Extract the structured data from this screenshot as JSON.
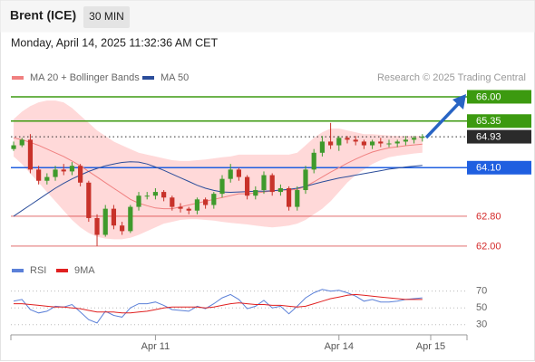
{
  "header": {
    "instrument": "Brent (ICE)",
    "interval": "30 MIN",
    "timestamp": "Monday, April 14, 2025 11:32:36 AM CET"
  },
  "chart_data": [
    {
      "type": "candlestick",
      "credit": "Research © 2025 Trading Central",
      "x": [
        0,
        1,
        2,
        3,
        4,
        5,
        6,
        7,
        8,
        9,
        10,
        11,
        12,
        13,
        14,
        15,
        16,
        17,
        18,
        19,
        20,
        21,
        22,
        23,
        24,
        25,
        26,
        27,
        28,
        29,
        30,
        31,
        32,
        33,
        34,
        35,
        36,
        37,
        38,
        39,
        40,
        41,
        42,
        43,
        44,
        45,
        46,
        47,
        48,
        49
      ],
      "xlim": [
        -0.33,
        54.35
      ],
      "ylim": [
        61.73,
        66.29
      ],
      "up_color": "#3f9a2c",
      "down_color": "#c8322a",
      "open": [
        64.6,
        64.7,
        64.85,
        64.05,
        63.75,
        63.85,
        64.05,
        64.0,
        64.15,
        63.7,
        62.75,
        62.3,
        63.0,
        62.55,
        62.4,
        63.05,
        63.35,
        63.35,
        63.45,
        63.3,
        63.05,
        63.0,
        62.95,
        63.25,
        63.1,
        63.4,
        63.8,
        64.05,
        63.85,
        63.35,
        63.5,
        63.9,
        63.45,
        63.55,
        63.05,
        63.5,
        64.05,
        64.5,
        64.8,
        64.7,
        64.9,
        64.85,
        64.8,
        64.7,
        64.8,
        64.75,
        64.75,
        64.8,
        64.85,
        64.9
      ],
      "high": [
        64.8,
        64.9,
        65.0,
        64.15,
        63.95,
        64.15,
        64.2,
        64.25,
        64.2,
        63.75,
        62.85,
        63.1,
        63.1,
        62.65,
        63.1,
        63.45,
        63.45,
        63.55,
        63.5,
        63.35,
        63.15,
        63.05,
        63.3,
        63.3,
        63.45,
        63.9,
        64.2,
        64.1,
        63.9,
        63.6,
        64.0,
        63.95,
        63.65,
        63.6,
        63.6,
        64.15,
        64.6,
        64.95,
        65.3,
        64.95,
        64.95,
        64.95,
        64.85,
        64.85,
        64.9,
        64.85,
        64.85,
        64.95,
        64.95,
        65.0
      ],
      "low": [
        64.55,
        64.65,
        63.95,
        63.65,
        63.65,
        63.75,
        63.9,
        63.9,
        63.6,
        62.65,
        62.0,
        62.25,
        62.45,
        62.3,
        62.35,
        62.95,
        63.25,
        63.25,
        63.2,
        62.95,
        62.9,
        62.85,
        62.85,
        63.0,
        63.0,
        63.3,
        63.7,
        63.75,
        63.25,
        63.25,
        63.4,
        63.35,
        63.35,
        62.95,
        62.95,
        63.4,
        63.95,
        64.4,
        64.6,
        64.55,
        64.75,
        64.7,
        64.6,
        64.6,
        64.65,
        64.65,
        64.65,
        64.7,
        64.75,
        64.8
      ],
      "close": [
        64.7,
        64.85,
        64.05,
        63.75,
        63.85,
        64.05,
        64.0,
        64.15,
        63.7,
        62.75,
        62.3,
        63.0,
        62.55,
        62.4,
        63.05,
        63.35,
        63.35,
        63.45,
        63.3,
        63.05,
        63.0,
        62.95,
        63.25,
        63.1,
        63.4,
        63.8,
        64.05,
        63.85,
        63.35,
        63.5,
        63.9,
        63.45,
        63.55,
        63.05,
        63.5,
        64.05,
        64.5,
        64.8,
        64.7,
        64.9,
        64.85,
        64.8,
        64.7,
        64.8,
        64.75,
        64.75,
        64.8,
        64.85,
        64.9,
        64.93
      ],
      "series": [
        {
          "name": "MA 20 + Bollinger Bands",
          "color": "#f08080",
          "band_color": "#ffd9d9",
          "values": [
            64.9,
            64.85,
            64.78,
            64.7,
            64.6,
            64.5,
            64.4,
            64.28,
            64.15,
            64.0,
            63.85,
            63.7,
            63.55,
            63.4,
            63.25,
            63.15,
            63.08,
            63.02,
            63.0,
            63.0,
            63.05,
            63.1,
            63.15,
            63.2,
            63.25,
            63.3,
            63.35,
            63.4,
            63.4,
            63.42,
            63.45,
            63.48,
            63.5,
            63.5,
            63.52,
            63.6,
            63.72,
            63.85,
            63.98,
            64.1,
            64.22,
            64.33,
            64.43,
            64.52,
            64.58,
            64.63,
            64.66,
            64.69,
            64.71,
            64.73
          ],
          "upper": [
            65.4,
            65.6,
            65.75,
            65.85,
            65.9,
            65.9,
            65.85,
            65.7,
            65.5,
            65.3,
            65.1,
            64.95,
            64.8,
            64.7,
            64.6,
            64.5,
            64.45,
            64.4,
            64.35,
            64.3,
            64.28,
            64.28,
            64.3,
            64.32,
            64.35,
            64.38,
            64.4,
            64.45,
            64.45,
            64.45,
            64.45,
            64.45,
            64.45,
            64.45,
            64.5,
            64.7,
            64.9,
            65.05,
            65.15,
            65.15,
            65.1,
            65.05,
            65.0,
            65.0,
            64.98,
            64.96,
            64.95,
            64.95,
            64.95,
            64.95
          ],
          "lower": [
            64.4,
            64.2,
            63.95,
            63.7,
            63.45,
            63.2,
            62.95,
            62.7,
            62.5,
            62.35,
            62.25,
            62.2,
            62.18,
            62.18,
            62.22,
            62.3,
            62.4,
            62.5,
            62.6,
            62.65,
            62.7,
            62.72,
            62.72,
            62.7,
            62.68,
            62.65,
            62.62,
            62.6,
            62.58,
            62.55,
            62.52,
            62.5,
            62.52,
            62.55,
            62.6,
            62.7,
            62.85,
            63.0,
            63.2,
            63.45,
            63.7,
            63.9,
            64.05,
            64.2,
            64.3,
            64.38,
            64.42,
            64.45,
            64.48,
            64.5
          ]
        },
        {
          "name": "MA 50",
          "color": "#2b4d9a",
          "values": [
            62.8,
            62.95,
            63.1,
            63.25,
            63.4,
            63.55,
            63.68,
            63.8,
            63.9,
            64.0,
            64.08,
            64.15,
            64.2,
            64.24,
            64.26,
            64.25,
            64.2,
            64.12,
            64.03,
            63.93,
            63.83,
            63.73,
            63.63,
            63.55,
            63.49,
            63.45,
            63.44,
            63.45,
            63.46,
            63.47,
            63.47,
            63.48,
            63.5,
            63.52,
            63.55,
            63.6,
            63.66,
            63.72,
            63.77,
            63.82,
            63.86,
            63.9,
            63.94,
            63.98,
            64.02,
            64.06,
            64.09,
            64.12,
            64.14,
            64.16
          ]
        }
      ],
      "levels": [
        {
          "value": 66.0,
          "label": "66.00",
          "color": "#3c9a10",
          "style": "box",
          "line": "solid"
        },
        {
          "value": 65.35,
          "label": "65.35",
          "color": "#3c9a10",
          "style": "box",
          "line": "solid"
        },
        {
          "value": 64.93,
          "label": "64.93",
          "color": "#2b2b2b",
          "style": "box",
          "line": "dotted"
        },
        {
          "value": 64.1,
          "label": "64.10",
          "color": "#1f5fe0",
          "style": "box",
          "line": "solid"
        },
        {
          "value": 62.8,
          "label": "62.80",
          "color": "#d42a2a",
          "style": "text",
          "line": "solid"
        },
        {
          "value": 62.0,
          "label": "62.00",
          "color": "#d42a2a",
          "style": "text",
          "line": "solid"
        }
      ]
    },
    {
      "type": "line",
      "ylim": [
        20,
        88
      ],
      "yticks": [
        70,
        50,
        30
      ],
      "xticks": [
        {
          "value": 17,
          "label": "Apr 11"
        },
        {
          "value": 39,
          "label": "Apr 14"
        },
        {
          "value": 50,
          "label": "Apr 15"
        }
      ],
      "series": [
        {
          "name": "RSI",
          "color": "#5b80d8",
          "values": [
            58,
            60,
            48,
            44,
            46,
            52,
            51,
            54,
            45,
            36,
            32,
            46,
            41,
            39,
            50,
            55,
            55,
            57,
            53,
            48,
            47,
            46,
            52,
            49,
            55,
            62,
            66,
            60,
            49,
            52,
            59,
            50,
            52,
            43,
            52,
            62,
            68,
            72,
            70,
            71,
            68,
            64,
            58,
            60,
            57,
            57,
            58,
            60,
            61,
            62
          ]
        },
        {
          "name": "9MA",
          "color": "#e02020",
          "values": [
            55,
            55,
            54,
            53,
            52,
            51,
            51,
            50,
            49,
            47,
            45,
            45,
            45,
            44,
            44,
            45,
            46,
            48,
            50,
            51,
            51,
            51,
            51,
            50,
            51,
            53,
            55,
            56,
            55,
            54,
            54,
            53,
            53,
            52,
            51,
            52,
            55,
            58,
            61,
            63,
            65,
            66,
            65,
            64,
            63,
            62,
            61,
            60,
            60,
            60
          ]
        }
      ]
    }
  ]
}
